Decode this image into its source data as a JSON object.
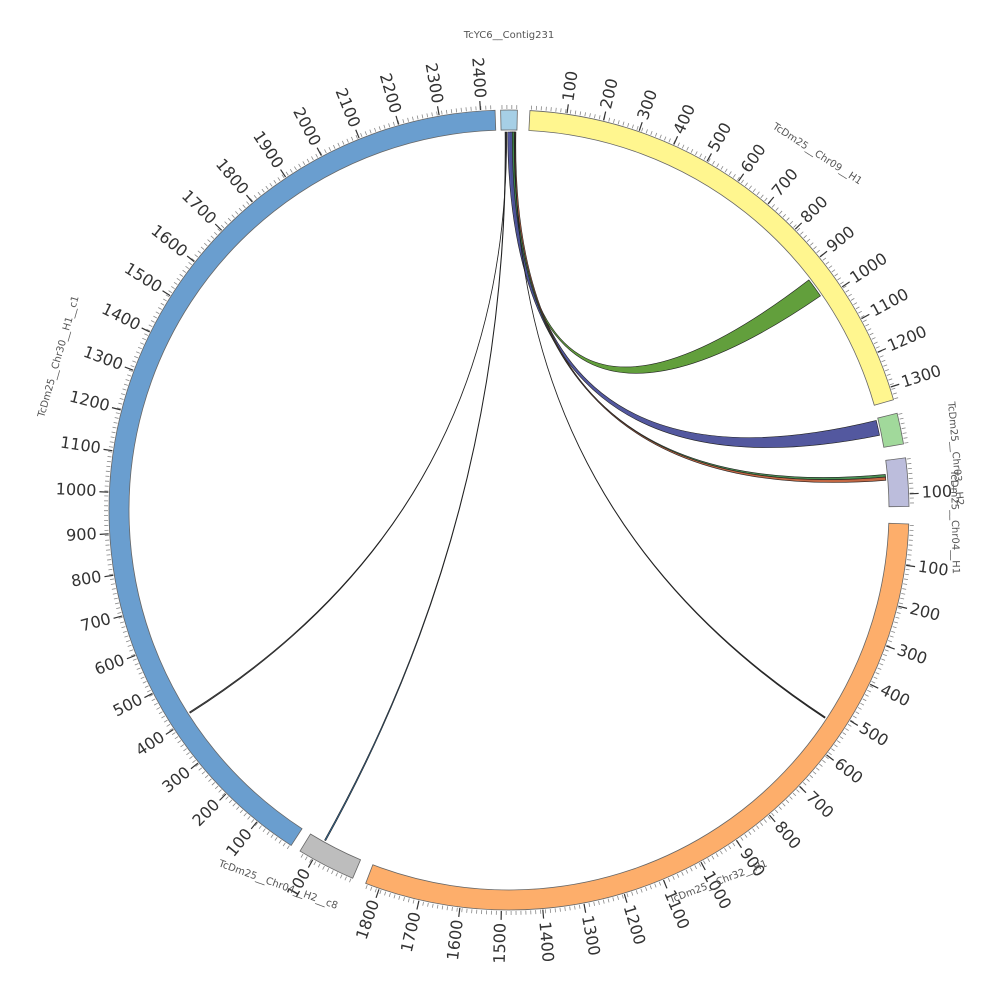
{
  "center": [
    509,
    510
  ],
  "radius": 400,
  "segments": [
    {
      "id": "contig231",
      "name": "TcYC6__Contig231",
      "color": "#a6cfe6",
      "start_deg": -1.2,
      "end_deg": 1.2,
      "ticks": []
    },
    {
      "id": "chr09",
      "name": "TcDm25__Chr09__H1",
      "color": "#fff68f",
      "start_deg": 3.0,
      "end_deg": 74.0,
      "ticks": [
        "100",
        "200",
        "300",
        "400",
        "500",
        "600",
        "700",
        "800",
        "900",
        "1000",
        "1100",
        "1200",
        "1300"
      ]
    },
    {
      "id": "chr03",
      "name": "TcDm25__Chr03__H2",
      "color": "#a1d99b",
      "start_deg": 76.0,
      "end_deg": 80.5,
      "ticks": []
    },
    {
      "id": "chr04h1",
      "name": "TcDm25__Chr04__H1",
      "color": "#bcbddc",
      "start_deg": 82.5,
      "end_deg": 89.5,
      "ticks": [
        "100"
      ]
    },
    {
      "id": "chr32",
      "name": "TcDm25__Chr32__H1",
      "color": "#fdae6b",
      "start_deg": 92.0,
      "end_deg": 201.0,
      "ticks": [
        "100",
        "200",
        "300",
        "400",
        "500",
        "600",
        "700",
        "800",
        "900",
        "1000",
        "1100",
        "1200",
        "1300",
        "1400",
        "1500",
        "1600",
        "1700",
        "1800"
      ]
    },
    {
      "id": "chr04h2",
      "name": "TcDm25__Chr04__H2__c8",
      "color": "#bdbdbd",
      "start_deg": 203.0,
      "end_deg": 211.5,
      "ticks": [
        "100"
      ]
    },
    {
      "id": "chr30",
      "name": "TcDm25__Chr30__H1__c1",
      "color": "#6a9ecf",
      "start_deg": 213.0,
      "end_deg": 358.0,
      "ticks": [
        "100",
        "200",
        "300",
        "400",
        "500",
        "600",
        "700",
        "800",
        "900",
        "1000",
        "1100",
        "1200",
        "1300",
        "1400",
        "1500",
        "1600",
        "1700",
        "1800",
        "1900",
        "2000",
        "2100",
        "2200",
        "2300",
        "2400"
      ]
    }
  ],
  "links": [
    {
      "id": "link-chr09",
      "color": "#5a9a32",
      "s1": 0.2,
      "s2": 0.9,
      "t1": 52.5,
      "t2": 55.5
    },
    {
      "id": "link-chr03",
      "color": "#4a4f9a",
      "s1": -0.2,
      "s2": 0.6,
      "t1": 76.3,
      "t2": 78.6
    },
    {
      "id": "link-chr04a",
      "color": "#3f8a4a",
      "s1": 0.5,
      "s2": 0.8,
      "t1": 84.6,
      "t2": 85.0
    },
    {
      "id": "link-chr04b",
      "color": "#c0603a",
      "s1": 0.8,
      "s2": 1.05,
      "t1": 85.0,
      "t2": 85.5
    },
    {
      "id": "link-chr32",
      "color": "#222222",
      "s1": 0.9,
      "s2": 0.95,
      "t1": 123.2,
      "t2": 123.4
    },
    {
      "id": "link-chr04h2",
      "color": "#2a6aa0",
      "s1": -0.6,
      "s2": -0.5,
      "t1": 209.0,
      "t2": 209.2
    },
    {
      "id": "link-chr30",
      "color": "#444444",
      "s1": -0.4,
      "s2": -0.35,
      "t1": 237.5,
      "t2": 237.7
    }
  ]
}
